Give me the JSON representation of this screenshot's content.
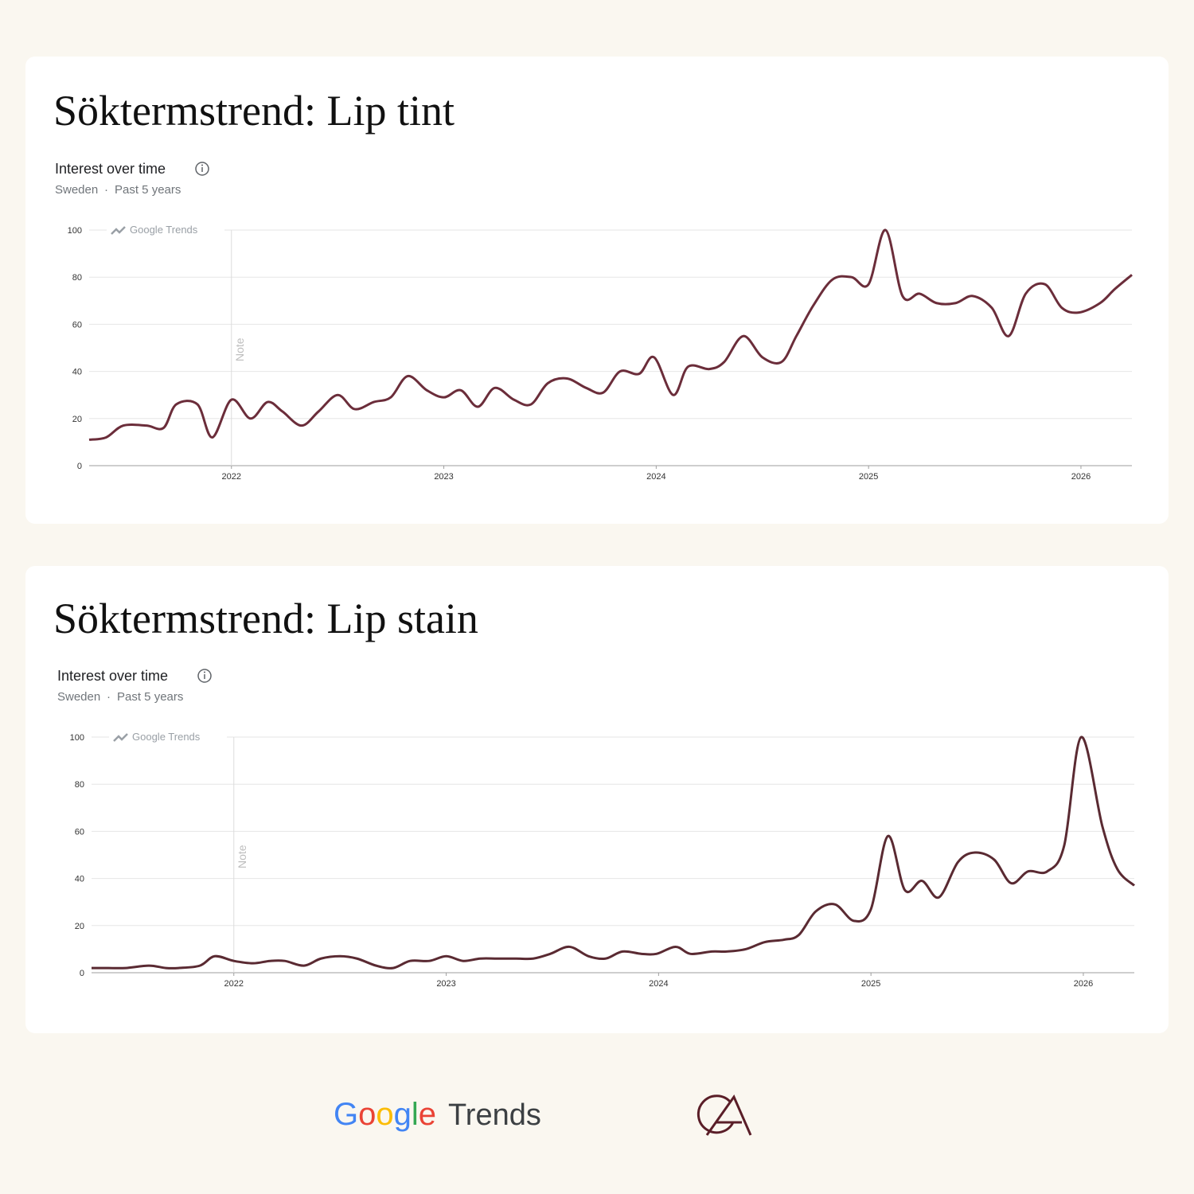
{
  "chart_data": [
    {
      "type": "line",
      "title": "Söktermstrend: Lip tint",
      "subtitle": "Interest over time",
      "region": "Sweden",
      "separator": "·",
      "period": "Past 5 years",
      "watermark": "Google Trends",
      "annotations": [
        {
          "text": "Note",
          "x": 2022
        }
      ],
      "x": [
        2021.33,
        2021.41,
        2021.49,
        2021.6,
        2021.68,
        2021.74,
        2021.84,
        2021.91,
        2022.0,
        2022.09,
        2022.17,
        2022.24,
        2022.33,
        2022.41,
        2022.5,
        2022.58,
        2022.67,
        2022.75,
        2022.83,
        2022.92,
        2023.0,
        2023.08,
        2023.16,
        2023.24,
        2023.33,
        2023.41,
        2023.49,
        2023.58,
        2023.67,
        2023.75,
        2023.83,
        2023.92,
        2023.99,
        2024.08,
        2024.15,
        2024.25,
        2024.32,
        2024.41,
        2024.5,
        2024.59,
        2024.66,
        2024.74,
        2024.83,
        2024.92,
        2025.0,
        2025.08,
        2025.16,
        2025.24,
        2025.32,
        2025.41,
        2025.49,
        2025.58,
        2025.66,
        2025.74,
        2025.83,
        2025.91,
        2025.99,
        2026.09,
        2026.16,
        2026.24
      ],
      "series": [
        {
          "name": "Lip tint",
          "color": "#6b2d3a",
          "values": [
            11,
            12,
            17,
            17,
            16,
            26,
            26,
            12,
            28,
            20,
            27,
            23,
            17,
            23,
            30,
            24,
            27,
            29,
            38,
            32,
            29,
            32,
            25,
            33,
            28,
            26,
            35,
            37,
            33,
            31,
            40,
            39,
            46,
            30,
            42,
            41,
            44,
            55,
            46,
            44,
            55,
            68,
            79,
            80,
            77,
            100,
            72,
            73,
            69,
            69,
            72,
            67,
            55,
            73,
            77,
            67,
            65,
            69,
            75,
            81
          ]
        }
      ],
      "xlim": [
        2021.33,
        2026.24
      ],
      "xticks": [
        2022,
        2023,
        2024,
        2025,
        2026
      ],
      "ylim": [
        0,
        100
      ],
      "yticks": [
        0,
        20,
        40,
        60,
        80,
        100
      ],
      "grid": true
    },
    {
      "type": "line",
      "title": "Söktermstrend: Lip stain",
      "subtitle": "Interest over time",
      "region": "Sweden",
      "separator": "·",
      "period": "Past 5 years",
      "watermark": "Google Trends",
      "annotations": [
        {
          "text": "Note",
          "x": 2022
        }
      ],
      "x": [
        2021.33,
        2021.41,
        2021.49,
        2021.6,
        2021.68,
        2021.74,
        2021.84,
        2021.91,
        2022.0,
        2022.09,
        2022.17,
        2022.24,
        2022.33,
        2022.41,
        2022.5,
        2022.58,
        2022.67,
        2022.75,
        2022.83,
        2022.92,
        2023.0,
        2023.08,
        2023.16,
        2023.24,
        2023.33,
        2023.41,
        2023.49,
        2023.58,
        2023.67,
        2023.75,
        2023.83,
        2023.92,
        2023.99,
        2024.08,
        2024.15,
        2024.25,
        2024.32,
        2024.41,
        2024.5,
        2024.59,
        2024.66,
        2024.74,
        2024.83,
        2024.92,
        2025.0,
        2025.08,
        2025.16,
        2025.24,
        2025.32,
        2025.41,
        2025.49,
        2025.58,
        2025.66,
        2025.74,
        2025.83,
        2025.91,
        2025.99,
        2026.09,
        2026.16,
        2026.24
      ],
      "series": [
        {
          "name": "Lip stain",
          "color": "#5a2a32",
          "values": [
            2,
            2,
            2,
            3,
            2,
            2,
            3,
            7,
            5,
            4,
            5,
            5,
            3,
            6,
            7,
            6,
            3,
            2,
            5,
            5,
            7,
            5,
            6,
            6,
            6,
            6,
            8,
            11,
            7,
            6,
            9,
            8,
            8,
            11,
            8,
            9,
            9,
            10,
            13,
            14,
            16,
            26,
            29,
            22,
            27,
            58,
            35,
            39,
            32,
            47,
            51,
            48,
            38,
            43,
            43,
            54,
            100,
            62,
            44,
            37
          ]
        }
      ],
      "xlim": [
        2021.33,
        2026.24
      ],
      "xticks": [
        2022,
        2023,
        2024,
        2025,
        2026
      ],
      "ylim": [
        0,
        100
      ],
      "yticks": [
        0,
        20,
        40,
        60,
        80,
        100
      ],
      "grid": true
    }
  ],
  "footer": {
    "brand": "Google",
    "product": "Trends"
  }
}
